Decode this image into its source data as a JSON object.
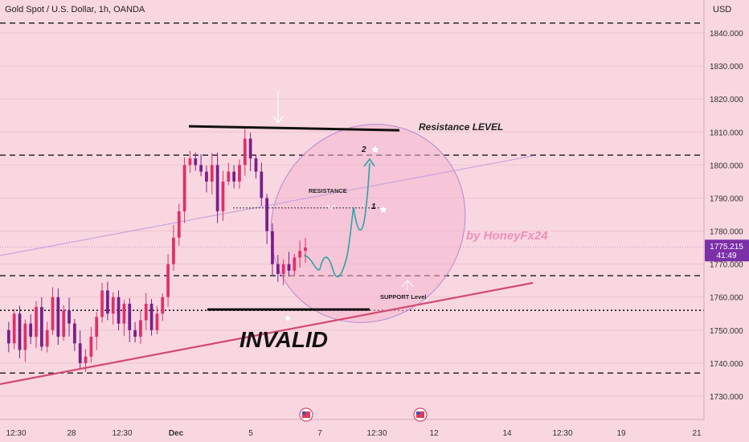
{
  "header": {
    "symbol_title": "Gold Spot / U.S. Dollar, 1h, OANDA",
    "currency": "USD"
  },
  "price_tag": {
    "price": "1775.215",
    "countdown": "41:49",
    "color": "#7b2fa8"
  },
  "watermark": "by HoneyFx24",
  "annotations": {
    "resistance_level": "Resistance LEVEL",
    "resistance": "RESISTANCE",
    "support_level": "SUPPORT Level",
    "invalid": "INVALID",
    "point_1": "1",
    "point_2": "2"
  },
  "colors": {
    "background": "#f8d7e0",
    "bull_candle": "#e0306a",
    "bear_candle": "#7a1f8a",
    "trend_line": "#d14a72",
    "channel_line": "#c9a3dc",
    "projection": "#2aa6a6",
    "ellipse_fill": "#f4b6cf",
    "ellipse_stroke": "#b48ad2"
  },
  "chart_data": {
    "type": "candlestick",
    "symbol": "Gold Spot / U.S. Dollar",
    "timeframe": "1h",
    "y_ticks": [
      1730,
      1740,
      1750,
      1760,
      1770,
      1780,
      1790,
      1800,
      1810,
      1820,
      1830,
      1840
    ],
    "y_tick_labels": [
      "1730.000",
      "1740.000",
      "1750.000",
      "1760.000",
      "1770.000",
      "1780.000",
      "1790.000",
      "1800.000",
      "1810.000",
      "1820.000",
      "1830.000",
      "1840.000"
    ],
    "ylim": [
      1723,
      1846
    ],
    "x_tick_labels": [
      "12:30",
      "28",
      "12:30",
      "Dec",
      "5",
      "7",
      "12:30",
      "12",
      "14",
      "12:30",
      "19",
      "21"
    ],
    "last_price": 1775.215,
    "horizontal_levels": [
      {
        "price": 1843.0,
        "style": "dashed"
      },
      {
        "price": 1803.0,
        "style": "dashed"
      },
      {
        "price": 1766.5,
        "style": "dashed"
      },
      {
        "price": 1756.0,
        "style": "dotted"
      },
      {
        "price": 1737.0,
        "style": "dashed"
      }
    ],
    "resistance_line": 1811.5,
    "invalid_line": 1756.0,
    "resistance_point_level": 1787.0,
    "close_path": [
      1750,
      1746,
      1755,
      1744,
      1752,
      1748,
      1757,
      1745,
      1750,
      1760,
      1748,
      1756,
      1752,
      1746,
      1740,
      1742,
      1748,
      1754,
      1762,
      1755,
      1760,
      1752,
      1758,
      1750,
      1748,
      1753,
      1758,
      1750,
      1755,
      1760,
      1770,
      1778,
      1786,
      1800,
      1802,
      1800,
      1798,
      1795,
      1800,
      1786,
      1795,
      1798,
      1795,
      1800,
      1808,
      1802,
      1798,
      1790,
      1780,
      1770,
      1767,
      1770,
      1768,
      1772,
      1774,
      1775
    ]
  }
}
